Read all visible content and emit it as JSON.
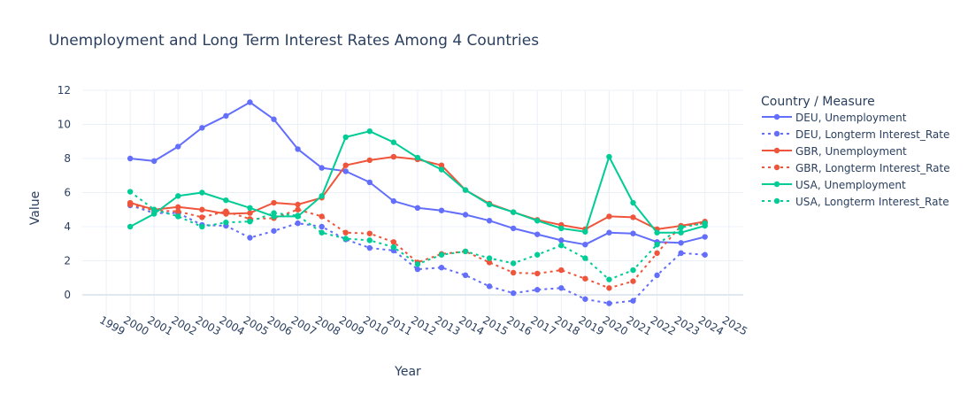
{
  "chart_data": {
    "type": "line",
    "title": "Unemployment and Long Term Interest Rates Among 4 Countries",
    "xlabel": "Year",
    "ylabel": "Value",
    "xlim": [
      1998.0,
      2025.6
    ],
    "ylim": [
      -1.3,
      12.0
    ],
    "xticks": [
      1999,
      2000,
      2001,
      2002,
      2003,
      2004,
      2005,
      2006,
      2007,
      2008,
      2009,
      2010,
      2011,
      2012,
      2013,
      2014,
      2015,
      2016,
      2017,
      2018,
      2019,
      2020,
      2021,
      2022,
      2023,
      2024,
      2025
    ],
    "yticks": [
      0,
      2,
      4,
      6,
      8,
      10,
      12
    ],
    "grid": true,
    "legend": {
      "title": "Country / Measure",
      "position": "right"
    },
    "x": [
      2000,
      2001,
      2002,
      2003,
      2004,
      2005,
      2006,
      2007,
      2008,
      2009,
      2010,
      2011,
      2012,
      2013,
      2014,
      2015,
      2016,
      2017,
      2018,
      2019,
      2020,
      2021,
      2022,
      2023,
      2024
    ],
    "series": [
      {
        "name": "DEU, Unemployment",
        "color": "#636efa",
        "dash": "solid",
        "values": [
          8.0,
          7.85,
          8.7,
          9.8,
          10.5,
          11.3,
          10.3,
          8.55,
          7.45,
          7.25,
          6.6,
          5.5,
          5.1,
          4.95,
          4.7,
          4.35,
          3.9,
          3.55,
          3.2,
          2.95,
          3.65,
          3.6,
          3.1,
          3.05,
          3.4
        ]
      },
      {
        "name": "DEU, Longterm Interest_Rate",
        "color": "#636efa",
        "dash": "dot",
        "values": [
          5.25,
          4.8,
          4.8,
          4.1,
          4.05,
          3.35,
          3.75,
          4.2,
          4.0,
          3.25,
          2.75,
          2.6,
          1.5,
          1.6,
          1.15,
          0.5,
          0.1,
          0.3,
          0.4,
          -0.25,
          -0.5,
          -0.35,
          1.15,
          2.45,
          2.35
        ]
      },
      {
        "name": "GBR, Unemployment",
        "color": "#ef553b",
        "dash": "solid",
        "values": [
          5.4,
          5.0,
          5.15,
          5.0,
          4.75,
          4.8,
          5.4,
          5.3,
          5.7,
          7.6,
          7.9,
          8.1,
          7.95,
          7.6,
          6.15,
          5.35,
          4.85,
          4.4,
          4.1,
          3.85,
          4.6,
          4.55,
          3.85,
          4.05,
          4.3
        ]
      },
      {
        "name": "GBR, Longterm Interest_Rate",
        "color": "#ef553b",
        "dash": "dot",
        "values": [
          5.3,
          4.95,
          4.9,
          4.55,
          4.9,
          4.45,
          4.5,
          5.0,
          4.6,
          3.65,
          3.6,
          3.1,
          1.9,
          2.4,
          2.55,
          1.9,
          1.3,
          1.25,
          1.45,
          0.95,
          0.4,
          0.8,
          2.45,
          4.05,
          4.2
        ]
      },
      {
        "name": "USA, Unemployment",
        "color": "#00cc96",
        "dash": "solid",
        "values": [
          4.0,
          4.75,
          5.8,
          6.0,
          5.55,
          5.1,
          4.6,
          4.6,
          5.8,
          9.25,
          9.6,
          8.95,
          8.05,
          7.35,
          6.15,
          5.3,
          4.85,
          4.35,
          3.9,
          3.7,
          8.1,
          5.4,
          3.65,
          3.65,
          4.05
        ]
      },
      {
        "name": "USA, Longterm Interest_Rate",
        "color": "#00cc96",
        "dash": "dot",
        "values": [
          6.05,
          5.0,
          4.6,
          4.0,
          4.25,
          4.3,
          4.8,
          4.65,
          3.65,
          3.3,
          3.2,
          2.8,
          1.8,
          2.35,
          2.55,
          2.15,
          1.85,
          2.35,
          2.9,
          2.15,
          0.9,
          1.45,
          2.95,
          3.95,
          4.2
        ]
      }
    ]
  }
}
